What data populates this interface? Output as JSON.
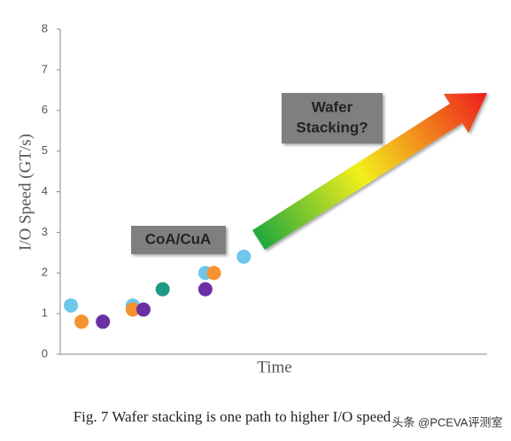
{
  "chart_data": {
    "type": "scatter",
    "y_label": "I/O Speed (GT/s)",
    "x_label": "Time",
    "annotations": [
      "CoA/CuA",
      [
        "Wafer",
        "Stacking?"
      ]
    ],
    "caption": "Fig. 7 Wafer stacking is one path to higher I/O speed",
    "xlim": [
      0,
      10
    ],
    "ylim": [
      0,
      8
    ],
    "yticks": [
      0,
      1,
      2,
      3,
      4,
      5,
      6,
      7,
      8
    ],
    "grid": false,
    "series": [
      {
        "color": "#6ec6ea",
        "x": [
          0.25,
          1.7,
          3.4,
          4.3
        ],
        "values": [
          1.2,
          1.2,
          2.0,
          2.4
        ]
      },
      {
        "color": "#f5922e",
        "x": [
          0.5,
          1.7,
          3.6
        ],
        "values": [
          0.8,
          1.1,
          2.0
        ]
      },
      {
        "color": "#6b2fa5",
        "x": [
          1.0,
          1.95,
          3.4
        ],
        "values": [
          0.8,
          1.1,
          1.6
        ]
      },
      {
        "color": "#1e9b84",
        "x": [
          2.4
        ],
        "values": [
          1.6
        ]
      }
    ]
  },
  "watermark": "头条 @PCEVA评测室"
}
